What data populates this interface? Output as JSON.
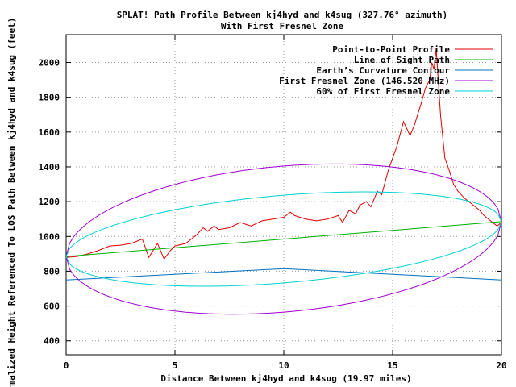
{
  "chart_data": {
    "type": "line",
    "title": "SPLAT! Path Profile Between kj4hyd and k4sug (327.76° azimuth)",
    "subtitle": "With First Fresnel Zone",
    "xlabel": "Distance Between kj4hyd and k4sug (19.97 miles)",
    "ylabel": "Normalized Height Referenced To LOS Path Between kj4hyd and k4sug (feet)",
    "xlim": [
      0,
      20
    ],
    "ylim": [
      320,
      2160
    ],
    "xticks": [
      0,
      5,
      10,
      15,
      20
    ],
    "yticks": [
      400,
      600,
      800,
      1000,
      1200,
      1400,
      1600,
      1800,
      2000
    ],
    "grid": true,
    "grid_style": "dotted",
    "legend_position": "top-right",
    "series": [
      {
        "name": "Point-to-Point Profile",
        "color": "#e00000",
        "x": [
          0,
          0.5,
          1,
          1.5,
          2,
          2.5,
          3,
          3.5,
          3.8,
          4.2,
          4.5,
          4.8,
          5,
          5.5,
          6,
          6.3,
          6.5,
          6.8,
          7,
          7.5,
          8,
          8.5,
          9,
          9.5,
          10,
          10.3,
          10.5,
          11,
          11.5,
          12,
          12.5,
          12.7,
          13,
          13.3,
          13.5,
          13.8,
          14,
          14.3,
          14.5,
          14.8,
          15,
          15.2,
          15.5,
          15.8,
          16,
          16.3,
          16.5,
          16.7,
          16.8,
          16.9,
          17,
          17.2,
          17.4,
          17.6,
          17.8,
          18,
          18.3,
          18.5,
          18.8,
          19,
          19.2,
          19.5,
          19.8,
          20
        ],
        "values": [
          880,
          885,
          900,
          920,
          945,
          950,
          960,
          985,
          880,
          960,
          870,
          920,
          945,
          960,
          1010,
          1050,
          1030,
          1060,
          1040,
          1050,
          1080,
          1060,
          1090,
          1100,
          1110,
          1140,
          1120,
          1100,
          1090,
          1100,
          1120,
          1080,
          1150,
          1130,
          1180,
          1200,
          1170,
          1260,
          1240,
          1380,
          1450,
          1520,
          1660,
          1580,
          1640,
          1760,
          1850,
          1900,
          2000,
          1960,
          2080,
          1700,
          1450,
          1380,
          1300,
          1260,
          1220,
          1200,
          1170,
          1150,
          1120,
          1090,
          1060,
          1080
        ]
      },
      {
        "name": "Line of Sight Path",
        "color": "#00b000",
        "x": [
          0,
          20
        ],
        "values": [
          885,
          1085
        ]
      },
      {
        "name": "Earth’s Curvature Contour",
        "color": "#0070c0",
        "x": [
          0,
          10,
          20
        ],
        "values": [
          750,
          815,
          750
        ]
      },
      {
        "name": "First Fresnel Zone (146.520 MHz)",
        "color": "#a000d0",
        "type": "ellipse",
        "center": [
          10,
          985
        ],
        "semi_major_x": 10,
        "semi_minor_feet": 420
      },
      {
        "name": "60% of First Fresnel Zone",
        "color": "#00d0d0",
        "type": "ellipse",
        "center": [
          10,
          985
        ],
        "semi_major_x": 10,
        "semi_minor_feet": 252
      }
    ]
  }
}
